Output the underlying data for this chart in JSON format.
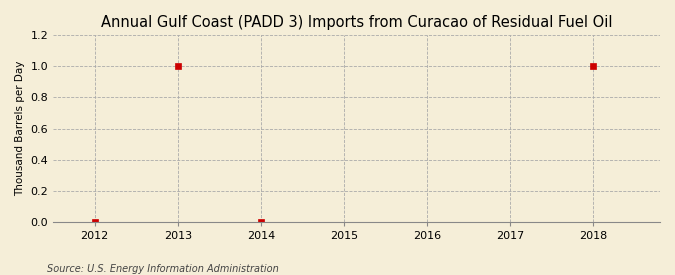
{
  "title": "Annual Gulf Coast (PADD 3) Imports from Curacao of Residual Fuel Oil",
  "ylabel": "Thousand Barrels per Day",
  "source": "Source: U.S. Energy Information Administration",
  "x_data": [
    2012,
    2013,
    2014,
    2018
  ],
  "y_data": [
    0.0,
    1.0,
    0.0,
    1.0
  ],
  "xlim": [
    2011.5,
    2018.8
  ],
  "ylim": [
    0.0,
    1.2
  ],
  "xticks": [
    2012,
    2013,
    2014,
    2015,
    2016,
    2017,
    2018
  ],
  "yticks": [
    0.0,
    0.2,
    0.4,
    0.6,
    0.8,
    1.0,
    1.2
  ],
  "marker_color": "#cc0000",
  "marker_style": "s",
  "marker_size": 4,
  "grid_color": "#aaaaaa",
  "background_color": "#f5eed8",
  "title_fontsize": 10.5,
  "ylabel_fontsize": 7.5,
  "tick_fontsize": 8,
  "source_fontsize": 7
}
